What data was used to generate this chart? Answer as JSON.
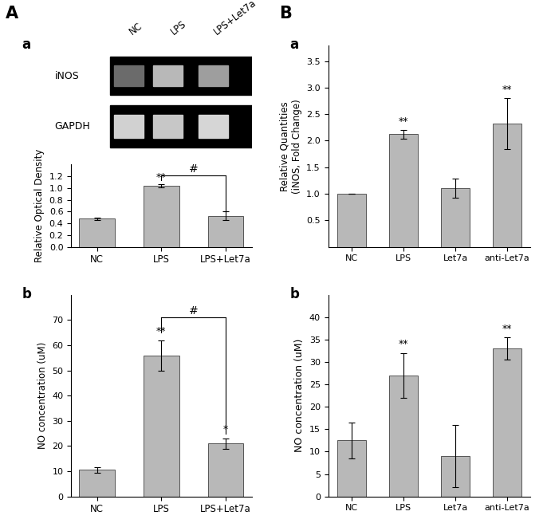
{
  "panel_A_label": "A",
  "panel_B_label": "B",
  "Aa_label": "a",
  "Ab_label": "b",
  "Ba_label": "a",
  "Bb_label": "b",
  "gel_categories": [
    "NC",
    "LPS",
    "LPS+Let7a"
  ],
  "gel_rows": [
    "iNOS",
    "GAPDH"
  ],
  "Aa_categories": [
    "NC",
    "LPS",
    "LPS+Let7a"
  ],
  "Aa_values": [
    0.48,
    1.04,
    0.53
  ],
  "Aa_errors": [
    0.02,
    0.03,
    0.07
  ],
  "Aa_ylabel": "Relative Optical Density",
  "Aa_ylim": [
    0.0,
    1.4
  ],
  "Aa_yticks": [
    0.0,
    0.2,
    0.4,
    0.6,
    0.8,
    1.0,
    1.2
  ],
  "Ab_categories": [
    "NC",
    "LPS",
    "LPS+Let7a"
  ],
  "Ab_values": [
    10.5,
    56.0,
    21.0
  ],
  "Ab_errors": [
    1.0,
    6.0,
    2.0
  ],
  "Ab_ylabel": "NO concentration (uM)",
  "Ab_ylim": [
    0,
    80
  ],
  "Ab_yticks": [
    0,
    10,
    20,
    30,
    40,
    50,
    60,
    70
  ],
  "Ba_categories": [
    "NC",
    "LPS",
    "Let7a",
    "anti-Let7a"
  ],
  "Ba_values": [
    1.0,
    2.12,
    1.1,
    2.32
  ],
  "Ba_errors": [
    0.0,
    0.08,
    0.18,
    0.48
  ],
  "Ba_ylabel": "Relative Quantities\n(iNOS, Fold Change)",
  "Ba_ylim": [
    0.0,
    3.8
  ],
  "Ba_yticks": [
    0.5,
    1.0,
    1.5,
    2.0,
    2.5,
    3.0,
    3.5
  ],
  "Bb_categories": [
    "NC",
    "LPS",
    "Let7a",
    "anti-Let7a"
  ],
  "Bb_values": [
    12.5,
    27.0,
    9.0,
    33.0
  ],
  "Bb_errors": [
    4.0,
    5.0,
    7.0,
    2.5
  ],
  "Bb_ylabel": "NO concentration (uM)",
  "Bb_ylim": [
    0,
    45
  ],
  "Bb_yticks": [
    0,
    5,
    10,
    15,
    20,
    25,
    30,
    35,
    40
  ],
  "bar_color": "#b8b8b8",
  "bar_edge_color": "#555555",
  "bar_width": 0.55,
  "background_color": "#ffffff"
}
